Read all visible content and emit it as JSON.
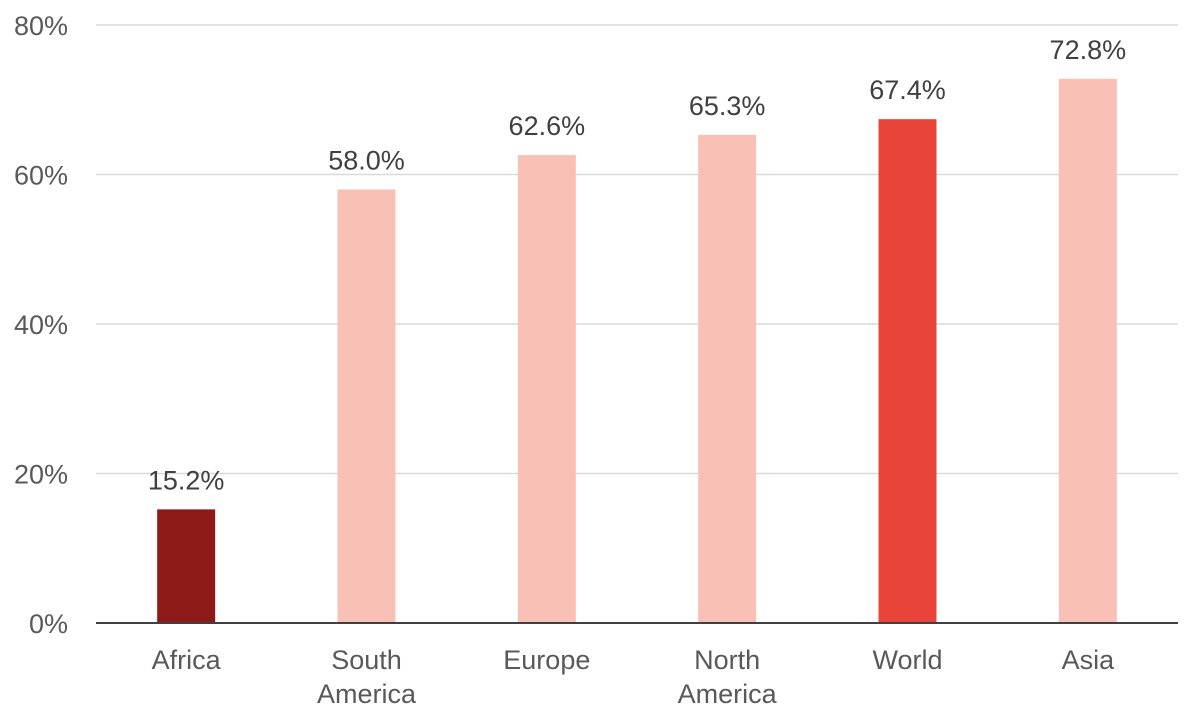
{
  "chart_data": {
    "type": "bar",
    "categories": [
      "Africa",
      "South America",
      "Europe",
      "North America",
      "World",
      "Asia"
    ],
    "category_lines": [
      [
        "Africa"
      ],
      [
        "South",
        "America"
      ],
      [
        "Europe"
      ],
      [
        "North",
        "America"
      ],
      [
        "World"
      ],
      [
        "Asia"
      ]
    ],
    "values": [
      15.2,
      58.0,
      62.6,
      65.3,
      67.4,
      72.8
    ],
    "data_labels": [
      "15.2%",
      "58.0%",
      "62.6%",
      "65.3%",
      "67.4%",
      "72.8%"
    ],
    "bar_colors": [
      "#8e1a17",
      "#f9c1b5",
      "#f9c1b5",
      "#f9c1b5",
      "#e8443a",
      "#f9c1b5"
    ],
    "y_ticks": [
      0,
      20,
      40,
      60,
      80
    ],
    "y_tick_labels": [
      "0%",
      "20%",
      "40%",
      "60%",
      "80%"
    ],
    "ylim": [
      0,
      80
    ],
    "grid": true,
    "legend": "none",
    "title": "",
    "xlabel": "",
    "ylabel": ""
  }
}
